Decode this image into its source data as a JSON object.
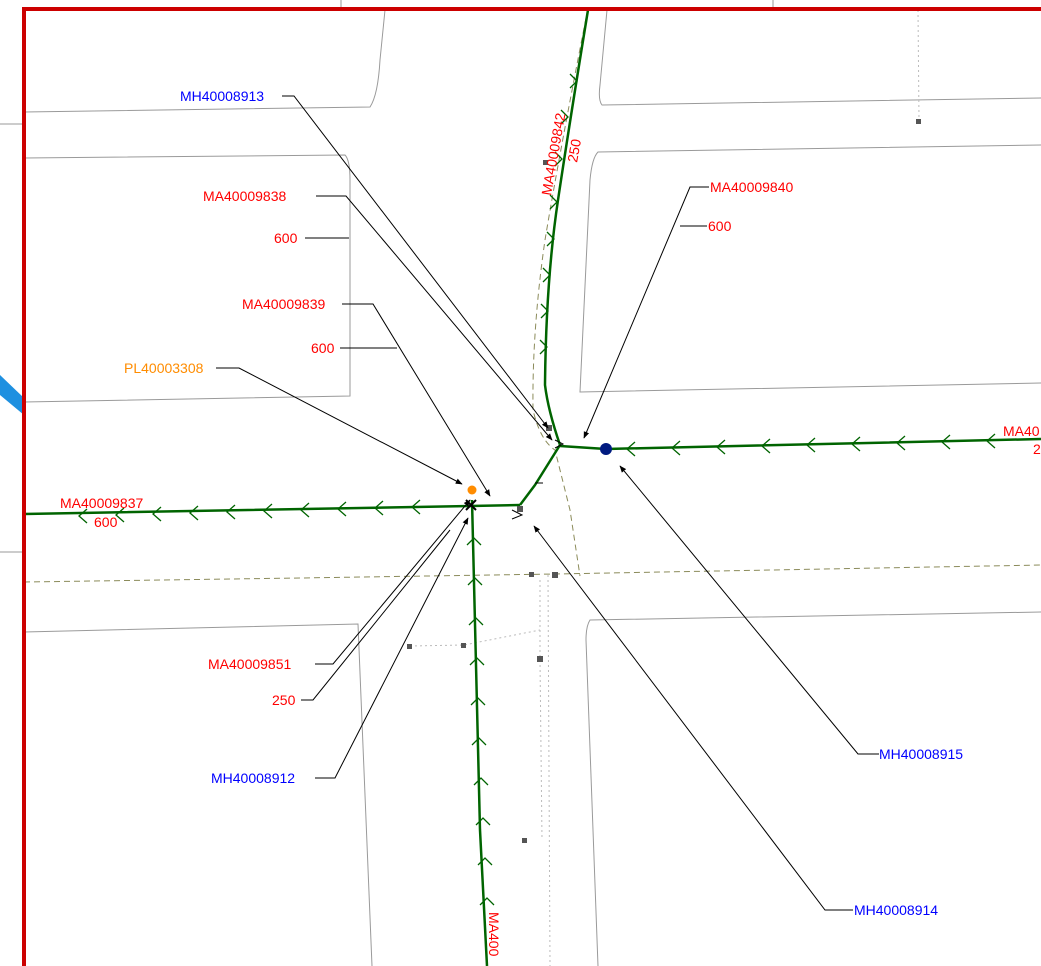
{
  "colors": {
    "frame": "#cc0000",
    "water_main": "#006400",
    "parcel": "#9a9a9a",
    "road_edge": "#8b8b5a",
    "leader": "#000000",
    "label_main": "#ff0000",
    "label_manhole": "#0000ff",
    "label_plug": "#ff8c00",
    "valve_node": "#001a80",
    "plug_node": "#ff8c00",
    "page_tab": "#1e90e0"
  },
  "labels": {
    "mh40008913": "MH40008913",
    "ma40009838": "MA40009838",
    "ma40009838_size": "600",
    "ma40009839": "MA40009839",
    "ma40009839_size": "600",
    "pl40003308": "PL40003308",
    "ma40009837": "MA40009837",
    "ma40009837_size": "600",
    "ma40009851": "MA40009851",
    "ma40009851_size": "250",
    "mh40008912": "MH40008912",
    "ma40009842": "MA40009842",
    "ma40009842_size": "250",
    "ma40009840": "MA40009840",
    "ma40009840_size": "600",
    "mh40008915": "MH40008915",
    "mh40008914": "MH40008914",
    "ma_east_partial": "MA40",
    "ma_east_size_partial": "2",
    "ma_south_partial": "MA400"
  }
}
